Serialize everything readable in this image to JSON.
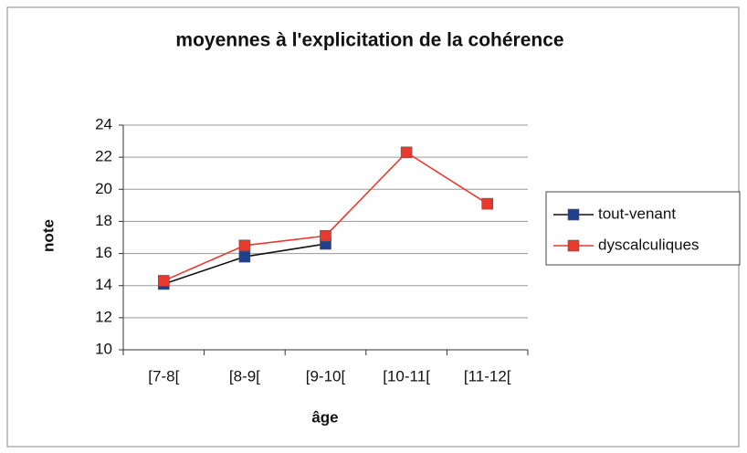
{
  "chart_data": {
    "type": "line",
    "title": "moyennes à l'explicitation de la cohérence",
    "x_label": "âge",
    "y_label": "note",
    "categories": [
      "[7-8[",
      "[8-9[",
      "[9-10[",
      "[10-11[",
      "[11-12["
    ],
    "series": [
      {
        "name": "tout-venant",
        "color": "#1f3f8f",
        "line_color": "#111111",
        "values": [
          14.1,
          15.8,
          16.6,
          null,
          null
        ]
      },
      {
        "name": "dyscalculiques",
        "color": "#e8392e",
        "line_color": "#e8392e",
        "values": [
          14.3,
          16.5,
          17.1,
          22.3,
          19.1
        ]
      }
    ],
    "ylim": [
      10,
      24
    ],
    "yticks": [
      10,
      12,
      14,
      16,
      18,
      20,
      22,
      24
    ],
    "grid": true,
    "legend": "right"
  }
}
